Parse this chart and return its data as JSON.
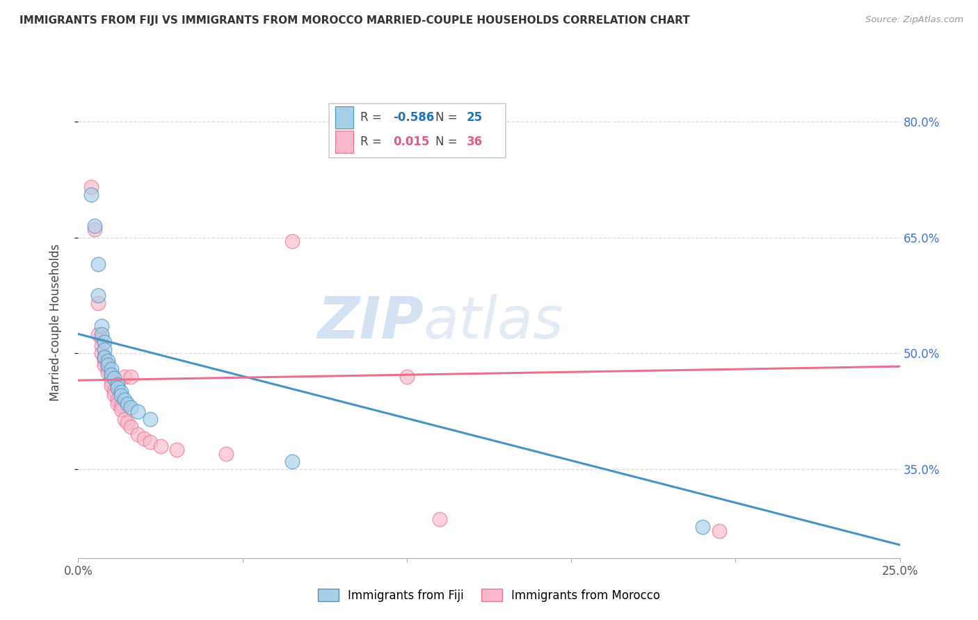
{
  "title": "IMMIGRANTS FROM FIJI VS IMMIGRANTS FROM MOROCCO MARRIED-COUPLE HOUSEHOLDS CORRELATION CHART",
  "source": "Source: ZipAtlas.com",
  "ylabel": "Married-couple Households",
  "ytick_labels": [
    "80.0%",
    "65.0%",
    "50.0%",
    "35.0%"
  ],
  "ytick_positions": [
    0.8,
    0.65,
    0.5,
    0.35
  ],
  "xlim": [
    0.0,
    0.25
  ],
  "ylim": [
    0.235,
    0.845
  ],
  "fiji_color": "#a8cfe8",
  "fiji_edge_color": "#4393c3",
  "morocco_color": "#f9b8cc",
  "morocco_edge_color": "#e8708a",
  "fiji_R": -0.586,
  "fiji_N": 25,
  "morocco_R": 0.015,
  "morocco_N": 36,
  "fiji_scatter": [
    [
      0.004,
      0.705
    ],
    [
      0.005,
      0.665
    ],
    [
      0.006,
      0.615
    ],
    [
      0.006,
      0.575
    ],
    [
      0.007,
      0.535
    ],
    [
      0.007,
      0.525
    ],
    [
      0.008,
      0.515
    ],
    [
      0.008,
      0.505
    ],
    [
      0.008,
      0.495
    ],
    [
      0.009,
      0.49
    ],
    [
      0.009,
      0.485
    ],
    [
      0.01,
      0.48
    ],
    [
      0.01,
      0.472
    ],
    [
      0.011,
      0.468
    ],
    [
      0.012,
      0.46
    ],
    [
      0.012,
      0.455
    ],
    [
      0.013,
      0.45
    ],
    [
      0.013,
      0.445
    ],
    [
      0.014,
      0.44
    ],
    [
      0.015,
      0.435
    ],
    [
      0.016,
      0.43
    ],
    [
      0.018,
      0.425
    ],
    [
      0.065,
      0.36
    ],
    [
      0.19,
      0.275
    ],
    [
      0.022,
      0.415
    ]
  ],
  "fiji_trendline": [
    [
      0.0,
      0.525
    ],
    [
      0.25,
      0.252
    ]
  ],
  "morocco_scatter": [
    [
      0.004,
      0.715
    ],
    [
      0.005,
      0.66
    ],
    [
      0.006,
      0.565
    ],
    [
      0.006,
      0.525
    ],
    [
      0.007,
      0.52
    ],
    [
      0.007,
      0.51
    ],
    [
      0.007,
      0.5
    ],
    [
      0.008,
      0.495
    ],
    [
      0.008,
      0.49
    ],
    [
      0.008,
      0.485
    ],
    [
      0.009,
      0.48
    ],
    [
      0.009,
      0.475
    ],
    [
      0.01,
      0.47
    ],
    [
      0.01,
      0.463
    ],
    [
      0.01,
      0.458
    ],
    [
      0.011,
      0.452
    ],
    [
      0.011,
      0.446
    ],
    [
      0.012,
      0.44
    ],
    [
      0.012,
      0.435
    ],
    [
      0.013,
      0.432
    ],
    [
      0.013,
      0.427
    ],
    [
      0.014,
      0.47
    ],
    [
      0.014,
      0.415
    ],
    [
      0.015,
      0.41
    ],
    [
      0.016,
      0.405
    ],
    [
      0.016,
      0.47
    ],
    [
      0.018,
      0.395
    ],
    [
      0.02,
      0.39
    ],
    [
      0.022,
      0.385
    ],
    [
      0.025,
      0.38
    ],
    [
      0.03,
      0.375
    ],
    [
      0.045,
      0.37
    ],
    [
      0.065,
      0.645
    ],
    [
      0.1,
      0.47
    ],
    [
      0.11,
      0.285
    ],
    [
      0.195,
      0.27
    ]
  ],
  "morocco_trendline": [
    [
      0.0,
      0.465
    ],
    [
      0.25,
      0.483
    ]
  ],
  "watermark_zip": "ZIP",
  "watermark_atlas": "atlas",
  "background_color": "#ffffff",
  "grid_color": "#d8d8d8",
  "bottom_legend_fiji": "Immigrants from Fiji",
  "bottom_legend_morocco": "Immigrants from Morocco"
}
